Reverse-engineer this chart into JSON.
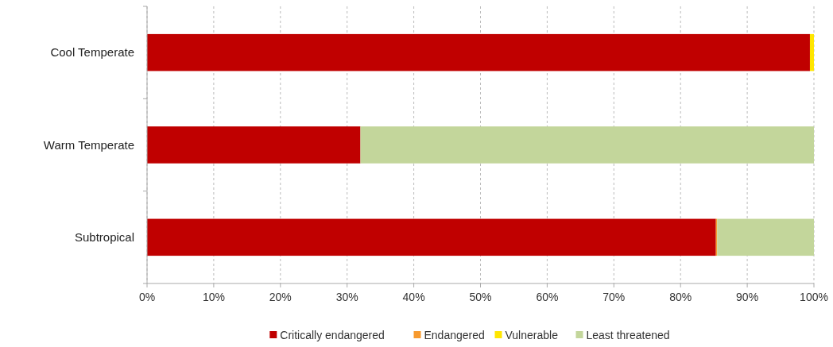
{
  "chart_data": {
    "type": "bar",
    "orientation": "horizontal",
    "stacked": true,
    "categories": [
      "Cool Temperate",
      "Warm Temperate",
      "Subtropical"
    ],
    "series": [
      {
        "name": "Critically endangered",
        "color": "#c00000",
        "values": [
          99.4,
          32,
          85.3
        ]
      },
      {
        "name": "Endangered",
        "color": "#f79a2e",
        "values": [
          0,
          0,
          0.2
        ]
      },
      {
        "name": "Vulnerable",
        "color": "#ffe600",
        "values": [
          0.6,
          0,
          0
        ]
      },
      {
        "name": "Least threatened",
        "color": "#c3d69b",
        "values": [
          0,
          68,
          14.5
        ]
      }
    ],
    "xlim": [
      0,
      100
    ],
    "xticks": [
      {
        "value": 0,
        "label": "0%"
      },
      {
        "value": 10,
        "label": "10%"
      },
      {
        "value": 20,
        "label": "20%"
      },
      {
        "value": 30,
        "label": "30%"
      },
      {
        "value": 40,
        "label": "40%"
      },
      {
        "value": 50,
        "label": "50%"
      },
      {
        "value": 60,
        "label": "60%"
      },
      {
        "value": 70,
        "label": "70%"
      },
      {
        "value": 80,
        "label": "80%"
      },
      {
        "value": 90,
        "label": "90%"
      },
      {
        "value": 100,
        "label": "100%"
      }
    ],
    "grid": "x",
    "legend": "bottom"
  }
}
